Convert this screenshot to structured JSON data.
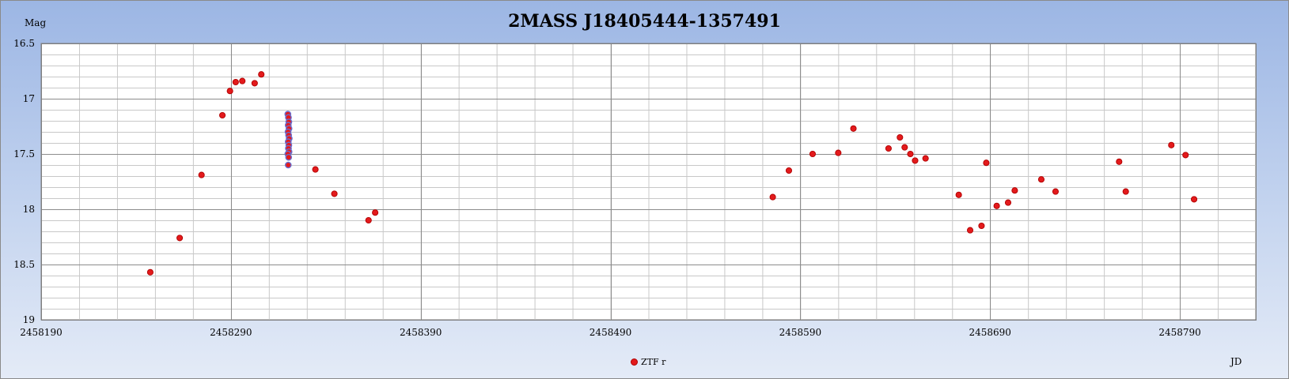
{
  "chart_data": {
    "type": "scatter",
    "title": "2MASS J18405444-1357491",
    "ylabel": "Mag",
    "xlabel": "JD",
    "xlim": [
      2458190,
      2458830
    ],
    "ylim": [
      19,
      16.5
    ],
    "y_inverted": true,
    "x_ticks": [
      2458190,
      2458290,
      2458390,
      2458490,
      2458590,
      2458690,
      2458790
    ],
    "y_ticks": [
      16.5,
      17,
      17.5,
      18,
      18.5,
      19
    ],
    "y_tick_labels": [
      "16.5",
      "17",
      "17.5",
      "18",
      "18.5",
      "19"
    ],
    "grid": true,
    "legend_position": "bottom-center",
    "colors": {
      "marker": "#e31a1c",
      "marker_edge": "#b00000",
      "ring": "#6a6fd0"
    },
    "series": [
      {
        "name": "ZTF r",
        "points": [
          [
            2458247.5,
            18.57
          ],
          [
            2458263.0,
            18.26
          ],
          [
            2458274.5,
            17.69
          ],
          [
            2458285.5,
            17.15
          ],
          [
            2458289.5,
            16.93
          ],
          [
            2458292.5,
            16.85
          ],
          [
            2458296.0,
            16.84
          ],
          [
            2458302.5,
            16.86
          ],
          [
            2458306.0,
            16.78
          ],
          [
            2458320.0,
            17.14
          ],
          [
            2458320.3,
            17.17
          ],
          [
            2458320.5,
            17.21
          ],
          [
            2458320.2,
            17.24
          ],
          [
            2458320.6,
            17.27
          ],
          [
            2458320.1,
            17.3
          ],
          [
            2458320.4,
            17.33
          ],
          [
            2458320.7,
            17.36
          ],
          [
            2458320.2,
            17.39
          ],
          [
            2458320.5,
            17.42
          ],
          [
            2458320.3,
            17.45
          ],
          [
            2458320.6,
            17.48
          ],
          [
            2458320.0,
            17.5
          ],
          [
            2458320.4,
            17.53
          ],
          [
            2458320.2,
            17.6
          ],
          [
            2458334.5,
            17.64
          ],
          [
            2458344.5,
            17.86
          ],
          [
            2458362.5,
            18.1
          ],
          [
            2458366.0,
            18.03
          ],
          [
            2458575.5,
            17.89
          ],
          [
            2458584.0,
            17.65
          ],
          [
            2458596.5,
            17.5
          ],
          [
            2458610.0,
            17.49
          ],
          [
            2458618.0,
            17.27
          ],
          [
            2458636.5,
            17.45
          ],
          [
            2458642.5,
            17.35
          ],
          [
            2458645.0,
            17.44
          ],
          [
            2458648.0,
            17.5
          ],
          [
            2458650.5,
            17.56
          ],
          [
            2458656.0,
            17.54
          ],
          [
            2458673.5,
            17.87
          ],
          [
            2458679.5,
            18.19
          ],
          [
            2458685.5,
            18.15
          ],
          [
            2458688.0,
            17.58
          ],
          [
            2458693.5,
            17.97
          ],
          [
            2458699.5,
            17.94
          ],
          [
            2458703.0,
            17.83
          ],
          [
            2458717.0,
            17.73
          ],
          [
            2458724.5,
            17.84
          ],
          [
            2458758.0,
            17.57
          ],
          [
            2458761.5,
            17.84
          ],
          [
            2458785.5,
            17.42
          ],
          [
            2458793.0,
            17.51
          ],
          [
            2458797.5,
            17.91
          ]
        ]
      }
    ]
  }
}
